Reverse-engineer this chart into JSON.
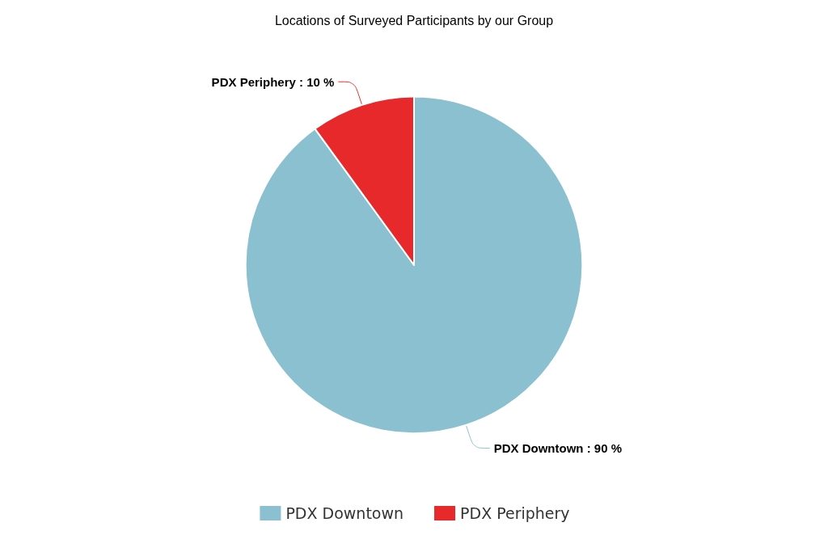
{
  "chart_data": {
    "type": "pie",
    "title": "Locations of Surveyed Participants by our Group",
    "categories": [
      "PDX Downtown",
      "PDX Periphery"
    ],
    "values": [
      90,
      10
    ],
    "colors": [
      "#8bc0d0",
      "#e8292b"
    ],
    "value_labels": [
      "PDX Downtown : 90 %",
      "PDX Periphery : 10 %"
    ],
    "legend": "bottom"
  }
}
